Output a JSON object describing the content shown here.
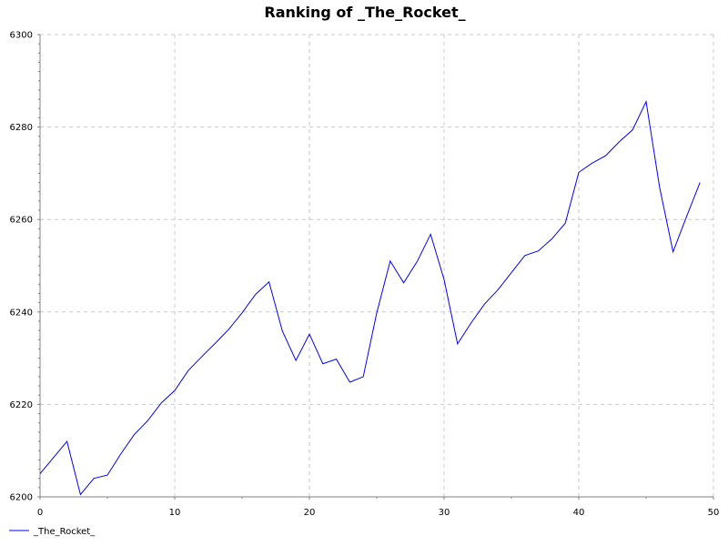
{
  "chart_data": {
    "type": "line",
    "title": "Ranking of _The_Rocket_",
    "xlabel": "",
    "ylabel": "",
    "xlim": [
      0,
      50
    ],
    "ylim": [
      6200,
      6300
    ],
    "x_ticks": [
      0,
      10,
      20,
      30,
      40,
      50
    ],
    "y_ticks": [
      6200,
      6220,
      6240,
      6260,
      6280,
      6300
    ],
    "x_tick_labels": [
      "0",
      "10",
      "20",
      "30",
      "40",
      "50"
    ],
    "y_tick_labels": [
      "6200",
      "6220",
      "6240",
      "6260",
      "6280",
      "6300"
    ],
    "grid": true,
    "legend_position": "bottom-left",
    "x": [
      0,
      1,
      2,
      3,
      4,
      5,
      6,
      7,
      8,
      9,
      10,
      11,
      12,
      13,
      14,
      15,
      16,
      17,
      18,
      19,
      20,
      21,
      22,
      23,
      24,
      25,
      26,
      27,
      28,
      29,
      30,
      31,
      32,
      33,
      34,
      35,
      36,
      37,
      38,
      39,
      40,
      41,
      42,
      43,
      44,
      45,
      46,
      47,
      48,
      49
    ],
    "series": [
      {
        "name": "_The_Rocket_",
        "color": "#0000ff",
        "values": [
          6205,
          6208.5,
          6212,
          6200.5,
          6204,
          6204.7,
          6209.3,
          6213.5,
          6216.5,
          6220.3,
          6223,
          6227.3,
          6230.3,
          6233.2,
          6236.2,
          6239.8,
          6243.8,
          6246.5,
          6235.8,
          6229.5,
          6235.2,
          6228.8,
          6229.8,
          6224.8,
          6226,
          6239.8,
          6251,
          6246.3,
          6250.9,
          6256.8,
          6247,
          6233.1,
          6237.6,
          6241.7,
          6244.8,
          6248.5,
          6252.2,
          6253.2,
          6255.8,
          6259.2,
          6270.2,
          6272.2,
          6273.8,
          6276.8,
          6279.4,
          6285.5,
          6267,
          6253,
          6260.6,
          6268
        ]
      }
    ]
  }
}
